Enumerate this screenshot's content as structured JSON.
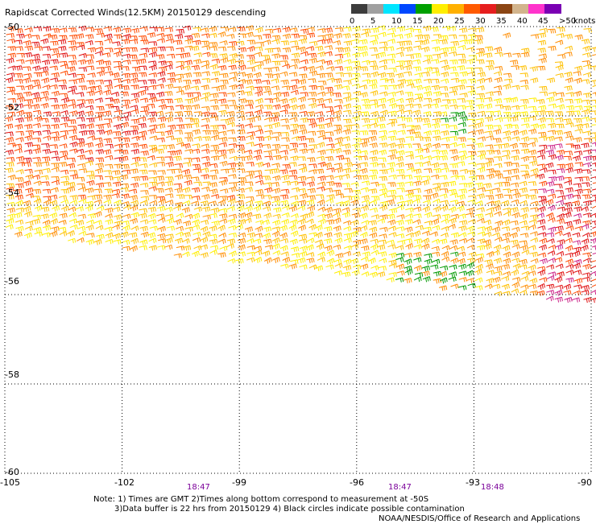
{
  "title": "Rapidscat Corrected Winds(12.5KM) 20150129 descending",
  "legend": {
    "unit": "knots",
    "labels": [
      "0",
      "5",
      "10",
      "15",
      "20",
      "25",
      "30",
      "35",
      "40",
      "45",
      ">50"
    ],
    "colors": [
      "#3c3c3c",
      "#a0a0a0",
      "#00e5ff",
      "#0047ff",
      "#00a000",
      "#ffee00",
      "#ffb000",
      "#ff5a00",
      "#e61e1e",
      "#8b4513",
      "#d2b48c",
      "#ff33cc",
      "#7a00b3"
    ]
  },
  "axes": {
    "lat_labels": [
      "-50",
      "-52",
      "-54",
      "-56",
      "-58",
      "-60"
    ],
    "lon_labels": [
      "-105",
      "-102",
      "-99",
      "-96",
      "-93",
      "-90"
    ],
    "lat_range": [
      -60,
      -50
    ],
    "lon_range": [
      -105,
      -90
    ]
  },
  "time_labels": [
    "18:47",
    "18:47",
    "18:48"
  ],
  "notes": [
    "Note: 1) Times are GMT 2)Times along bottom correspond to measurement at -50S",
    "3)Data buffer is 22 hrs from 20150129 4) Black circles indicate possible contamination",
    "NOAA/NESDIS/Office of Research and Applications"
  ],
  "wind_field": {
    "description": "Dense field of wind barbs covering the swath from -50 to about -56 latitude; strongest (30-40 kt, red/magenta) in the northwest and east, weakest (15-20 kt, green) in small patches near -96 to -93 longitude.",
    "band_colors": [
      "#e01010",
      "#ff4a00",
      "#ff8c00",
      "#ffc000",
      "#ffee00",
      "#009900",
      "#cc2288"
    ]
  }
}
